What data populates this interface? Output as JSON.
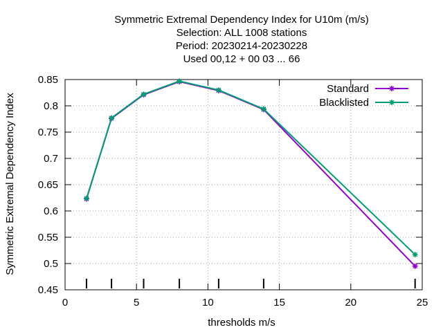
{
  "chart_data": {
    "type": "line",
    "title_lines": [
      "Symmetric Extremal Dependency Index  for U10m (m/s)",
      "Selection: ALL   1008 stations",
      "Period: 20230214-20230228",
      "Used  00,12  + 00 03 ... 66"
    ],
    "xlabel": "thresholds m/s",
    "ylabel": "Symmetric Extremal Dependency Index",
    "xlim": [
      0,
      25
    ],
    "ylim": [
      0.45,
      0.85
    ],
    "xticks": [
      0,
      5,
      10,
      15,
      20,
      25
    ],
    "xtick_labels": [
      "0",
      "5",
      "10",
      "15",
      "20",
      "25"
    ],
    "yticks": [
      0.45,
      0.5,
      0.55,
      0.6,
      0.65,
      0.7,
      0.75,
      0.8,
      0.85
    ],
    "ytick_labels": [
      "0.45",
      "0.5",
      "0.55",
      "0.6",
      "0.65",
      "0.7",
      "0.75",
      "0.8",
      "0.85"
    ],
    "grid": true,
    "legend_position": "top-right",
    "threshold_marks": [
      1.5,
      3.25,
      5.5,
      8.0,
      10.75,
      13.9,
      24.5
    ],
    "series": [
      {
        "name": "Standard",
        "color": "#9400d3",
        "x": [
          1.5,
          3.25,
          5.5,
          8.0,
          10.75,
          13.9,
          24.5
        ],
        "values": [
          0.623,
          0.776,
          0.821,
          0.846,
          0.829,
          0.793,
          0.495
        ]
      },
      {
        "name": "Blacklisted",
        "color": "#009e73",
        "x": [
          1.5,
          3.25,
          5.5,
          8.0,
          10.75,
          13.9,
          24.5
        ],
        "values": [
          0.624,
          0.777,
          0.822,
          0.847,
          0.83,
          0.794,
          0.517
        ]
      }
    ]
  }
}
